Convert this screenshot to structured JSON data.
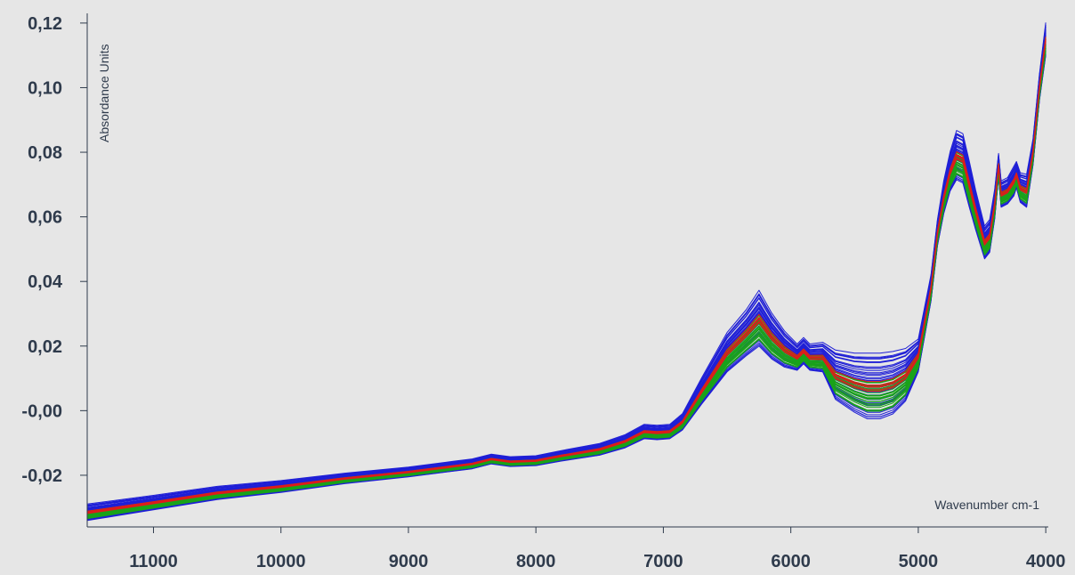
{
  "chart_data": {
    "type": "line",
    "title": "",
    "xlabel": "Wavenumber cm-1",
    "ylabel": "Absordance Units",
    "x_reversed": true,
    "xlim": [
      11520,
      3980
    ],
    "ylim": [
      -0.036,
      0.123
    ],
    "x_ticks": [
      11000,
      10000,
      9000,
      8000,
      7000,
      6000,
      5000,
      4000
    ],
    "x_tick_labels": [
      "11000",
      "10000",
      "9000",
      "8000",
      "7000",
      "6000",
      "5000",
      "4000"
    ],
    "y_ticks": [
      0.12,
      0.1,
      0.08,
      0.06,
      0.04,
      0.02,
      0.0,
      -0.02
    ],
    "y_tick_labels": [
      "0,12",
      "0,10",
      "0,08",
      "0,06",
      "0,04",
      "0,02",
      "-0,00",
      "-0,02"
    ],
    "grid": false,
    "legend": "none",
    "series_colors": {
      "blue": "#1f1fd6",
      "green": "#1aa31a",
      "red": "#e01b1b"
    },
    "envelope": {
      "x": [
        11520,
        11000,
        10500,
        10000,
        9500,
        9000,
        8700,
        8500,
        8350,
        8200,
        8000,
        7800,
        7500,
        7300,
        7150,
        7050,
        6950,
        6850,
        6700,
        6500,
        6350,
        6250,
        6150,
        6050,
        5950,
        5900,
        5850,
        5750,
        5650,
        5500,
        5400,
        5300,
        5200,
        5100,
        5000,
        4900,
        4850,
        4800,
        4750,
        4700,
        4650,
        4600,
        4550,
        4480,
        4440,
        4400,
        4370,
        4350,
        4300,
        4250,
        4230,
        4200,
        4150,
        4100,
        4050,
        4000
      ],
      "center": [
        -0.0315,
        -0.0285,
        -0.0255,
        -0.0235,
        -0.021,
        -0.019,
        -0.0175,
        -0.0165,
        -0.015,
        -0.0158,
        -0.0155,
        -0.014,
        -0.012,
        -0.0095,
        -0.0065,
        -0.0068,
        -0.0065,
        -0.0035,
        0.006,
        0.018,
        0.024,
        0.0285,
        0.023,
        0.019,
        0.0165,
        0.0185,
        0.0165,
        0.0165,
        0.011,
        0.0085,
        0.0075,
        0.0075,
        0.0085,
        0.011,
        0.017,
        0.038,
        0.055,
        0.066,
        0.074,
        0.079,
        0.078,
        0.07,
        0.062,
        0.052,
        0.054,
        0.064,
        0.076,
        0.067,
        0.068,
        0.071,
        0.073,
        0.069,
        0.068,
        0.08,
        0.1,
        0.115
      ],
      "spread": [
        0.0025,
        0.0022,
        0.002,
        0.0018,
        0.0016,
        0.0015,
        0.0015,
        0.0015,
        0.0015,
        0.0015,
        0.0015,
        0.0016,
        0.0018,
        0.002,
        0.0022,
        0.0022,
        0.0022,
        0.0025,
        0.004,
        0.006,
        0.007,
        0.0085,
        0.007,
        0.0055,
        0.004,
        0.004,
        0.004,
        0.0045,
        0.0075,
        0.009,
        0.01,
        0.01,
        0.0095,
        0.008,
        0.005,
        0.004,
        0.004,
        0.005,
        0.006,
        0.0075,
        0.0075,
        0.007,
        0.006,
        0.005,
        0.005,
        0.0045,
        0.0035,
        0.004,
        0.004,
        0.0045,
        0.004,
        0.0045,
        0.005,
        0.004,
        0.004,
        0.005
      ]
    },
    "groups": [
      {
        "color": "blue",
        "count": 40,
        "offset_range": [
          -1.0,
          1.0
        ]
      },
      {
        "color": "green",
        "count": 28,
        "offset_range": [
          -0.75,
          0.15
        ]
      },
      {
        "color": "red",
        "count": 6,
        "offset_range": [
          -0.12,
          0.12
        ]
      }
    ]
  }
}
